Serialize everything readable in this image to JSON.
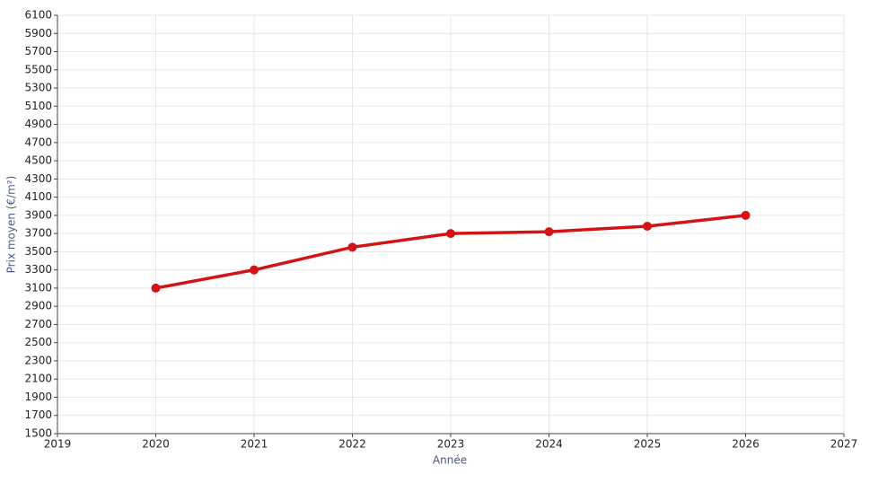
{
  "chart_data": {
    "type": "line",
    "x_label": "Année",
    "y_label": "Prix moyen (€/m²)",
    "x": [
      2020,
      2021,
      2022,
      2023,
      2024,
      2025,
      2026
    ],
    "series": [
      {
        "name": "Prix moyen",
        "color": "#d41414",
        "values": [
          3100,
          3300,
          3550,
          3700,
          3720,
          3780,
          3900
        ]
      }
    ],
    "xlim": [
      2019,
      2027
    ],
    "xticks": [
      2019,
      2020,
      2021,
      2022,
      2023,
      2024,
      2025,
      2026,
      2027
    ],
    "ylim": [
      1500,
      6100
    ],
    "yticks": [
      1500,
      1700,
      1900,
      2100,
      2300,
      2500,
      2700,
      2900,
      3100,
      3300,
      3500,
      3700,
      3900,
      4100,
      4300,
      4500,
      4700,
      4900,
      5100,
      5300,
      5500,
      5700,
      5900,
      6100
    ],
    "grid": true
  }
}
